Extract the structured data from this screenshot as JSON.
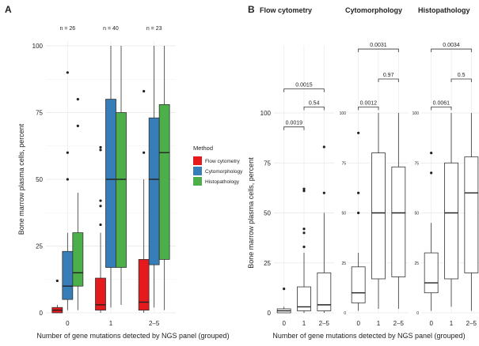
{
  "panels": {
    "a_label": "A",
    "b_label": "B"
  },
  "chart_data": [
    {
      "type": "box",
      "panel": "A",
      "xlabel": "Number of gene mutations detected by NGS panel (grouped)",
      "ylabel": "Bone marrow plasma cells, percent",
      "ylim": [
        0,
        100
      ],
      "yticks": [
        0,
        25,
        50,
        75,
        100
      ],
      "categories": [
        "0",
        "1",
        "2–5"
      ],
      "n_labels": [
        "n = 26",
        "n = 40",
        "n = 23"
      ],
      "grid": true,
      "legend": {
        "title": "Method",
        "position": "right",
        "entries": [
          "Flow cytometry",
          "Cytomorphology",
          "Histopathology"
        ]
      },
      "series": [
        {
          "name": "Flow cytometry",
          "color": "#e41a1c",
          "boxes": [
            {
              "whisker_low": 0,
              "q1": 0,
              "median": 1,
              "q3": 2,
              "whisker_high": 3,
              "outliers": [
                12
              ]
            },
            {
              "whisker_low": 0,
              "q1": 1,
              "median": 3,
              "q3": 13,
              "whisker_high": 30,
              "outliers": [
                33,
                40,
                42,
                61,
                62
              ]
            },
            {
              "whisker_low": 0,
              "q1": 1,
              "median": 4,
              "q3": 20,
              "whisker_high": 50,
              "outliers": [
                60,
                83
              ]
            }
          ]
        },
        {
          "name": "Cytomorphology",
          "color": "#377eb8",
          "boxes": [
            {
              "whisker_low": 1,
              "q1": 5,
              "median": 10,
              "q3": 23,
              "whisker_high": 30,
              "outliers": [
                50,
                60,
                90
              ]
            },
            {
              "whisker_low": 2,
              "q1": 17,
              "median": 50,
              "q3": 80,
              "whisker_high": 100,
              "outliers": []
            },
            {
              "whisker_low": 2,
              "q1": 18,
              "median": 50,
              "q3": 73,
              "whisker_high": 100,
              "outliers": []
            }
          ]
        },
        {
          "name": "Histopathology",
          "color": "#4daf4a",
          "boxes": [
            {
              "whisker_low": 1,
              "q1": 10,
              "median": 15,
              "q3": 30,
              "whisker_high": 45,
              "outliers": [
                70,
                80
              ]
            },
            {
              "whisker_low": 3,
              "q1": 17,
              "median": 50,
              "q3": 75,
              "whisker_high": 100,
              "outliers": []
            },
            {
              "whisker_low": 1,
              "q1": 20,
              "median": 60,
              "q3": 78,
              "whisker_high": 100,
              "outliers": []
            }
          ]
        }
      ]
    },
    {
      "type": "box",
      "panel": "B",
      "xlabel": "Number of gene mutations detected by NGS panel (grouped)",
      "ylabel": "Bone marrow plasma cells, percent",
      "ylim": [
        0,
        100
      ],
      "yticks": [
        0,
        25,
        50,
        75,
        100
      ],
      "categories": [
        "0",
        "1",
        "2–5"
      ],
      "facets": [
        {
          "title": "Flow cytometry",
          "boxes": [
            {
              "whisker_low": 0,
              "q1": 0,
              "median": 1,
              "q3": 2,
              "whisker_high": 3,
              "outliers": [
                12
              ]
            },
            {
              "whisker_low": 0,
              "q1": 1,
              "median": 3,
              "q3": 13,
              "whisker_high": 30,
              "outliers": [
                33,
                40,
                42,
                61,
                62
              ]
            },
            {
              "whisker_low": 0,
              "q1": 1,
              "median": 4,
              "q3": 20,
              "whisker_high": 50,
              "outliers": [
                60,
                83
              ]
            }
          ],
          "comparisons": [
            {
              "from": 0,
              "to": 2,
              "p": "0.0015",
              "y": 112
            },
            {
              "from": 0,
              "to": 1,
              "p": "0.0019",
              "y": 93
            },
            {
              "from": 1,
              "to": 2,
              "p": "0.54",
              "y": 103
            }
          ]
        },
        {
          "title": "Cytomorphology",
          "boxes": [
            {
              "whisker_low": 1,
              "q1": 5,
              "median": 10,
              "q3": 23,
              "whisker_high": 30,
              "outliers": [
                50,
                60,
                90
              ]
            },
            {
              "whisker_low": 2,
              "q1": 17,
              "median": 50,
              "q3": 80,
              "whisker_high": 100,
              "outliers": []
            },
            {
              "whisker_low": 2,
              "q1": 18,
              "median": 50,
              "q3": 73,
              "whisker_high": 100,
              "outliers": []
            }
          ],
          "comparisons": [
            {
              "from": 0,
              "to": 2,
              "p": "0.0031",
              "y": 132
            },
            {
              "from": 0,
              "to": 1,
              "p": "0.0012",
              "y": 103
            },
            {
              "from": 1,
              "to": 2,
              "p": "0.97",
              "y": 117
            }
          ]
        },
        {
          "title": "Histopathology",
          "boxes": [
            {
              "whisker_low": 1,
              "q1": 10,
              "median": 15,
              "q3": 30,
              "whisker_high": 45,
              "outliers": [
                70,
                80
              ]
            },
            {
              "whisker_low": 3,
              "q1": 17,
              "median": 50,
              "q3": 75,
              "whisker_high": 100,
              "outliers": []
            },
            {
              "whisker_low": 1,
              "q1": 20,
              "median": 60,
              "q3": 78,
              "whisker_high": 100,
              "outliers": []
            }
          ],
          "comparisons": [
            {
              "from": 0,
              "to": 2,
              "p": "0.0034",
              "y": 132
            },
            {
              "from": 0,
              "to": 1,
              "p": "0.0061",
              "y": 103
            },
            {
              "from": 1,
              "to": 2,
              "p": "0.5",
              "y": 117
            }
          ]
        }
      ]
    }
  ]
}
